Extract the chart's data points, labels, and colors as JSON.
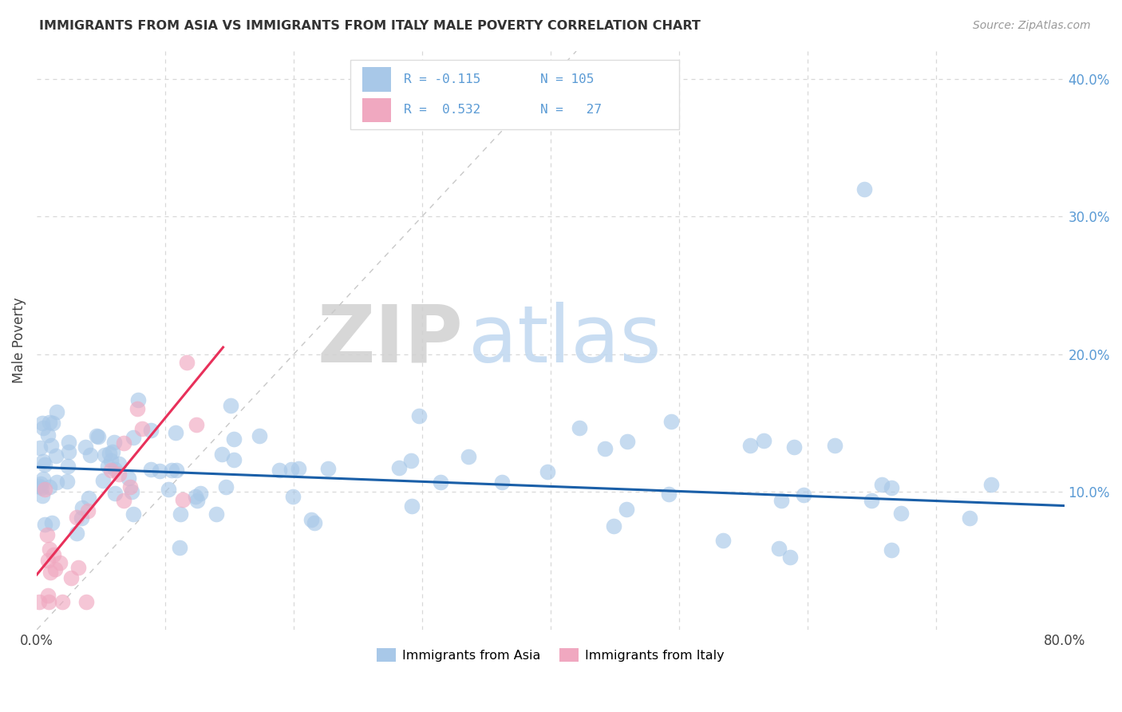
{
  "title": "IMMIGRANTS FROM ASIA VS IMMIGRANTS FROM ITALY MALE POVERTY CORRELATION CHART",
  "source": "Source: ZipAtlas.com",
  "ylabel": "Male Poverty",
  "xlim": [
    0,
    0.8
  ],
  "ylim": [
    0,
    0.42
  ],
  "color_asia": "#a8c8e8",
  "color_italy": "#f0a8c0",
  "color_trend_asia": "#1a5fa8",
  "color_trend_italy": "#e8305a",
  "color_diagonal": "#c8c8c8",
  "background_color": "#ffffff",
  "grid_color": "#d8d8d8",
  "trend_asia_x0": 0.0,
  "trend_asia_x1": 0.8,
  "trend_asia_y0": 0.118,
  "trend_asia_y1": 0.09,
  "trend_italy_x0": 0.0,
  "trend_italy_x1": 0.145,
  "trend_italy_y0": 0.04,
  "trend_italy_y1": 0.205,
  "watermark_zip": "ZIP",
  "watermark_atlas": "atlas",
  "watermark_zip_color": "#d0d0d0",
  "watermark_atlas_color": "#c0d8f0",
  "legend_text_color": "#5b9bd5",
  "legend_r_asia": "R = -0.115",
  "legend_n_asia": "N = 105",
  "legend_r_italy": "R =  0.532",
  "legend_n_italy": "N =   27"
}
